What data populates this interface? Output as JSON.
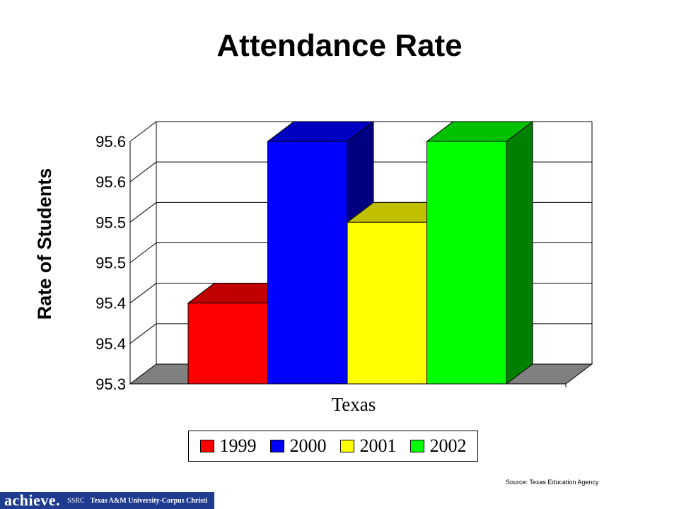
{
  "title": "Attendance Rate",
  "source": "Source: Texas Education Agency",
  "footer": {
    "logo": "achieve.",
    "ssrc": "SSRC",
    "university": "Texas A&M University-Corpus Christi"
  },
  "chart_data": {
    "type": "bar",
    "title": "Attendance Rate",
    "xlabel": "",
    "ylabel": "Rate of Students",
    "categories": [
      "Texas"
    ],
    "series": [
      {
        "name": "1999",
        "values": [
          95.4
        ],
        "color": "#ff0000",
        "top_color": "#c00000",
        "side_color": "#c00000"
      },
      {
        "name": "2000",
        "values": [
          95.6
        ],
        "color": "#0000ff",
        "top_color": "#0000c0",
        "side_color": "#000080"
      },
      {
        "name": "2001",
        "values": [
          95.5
        ],
        "color": "#ffff00",
        "top_color": "#c0c000",
        "side_color": "#c0c000"
      },
      {
        "name": "2002",
        "values": [
          95.6
        ],
        "color": "#00ff00",
        "top_color": "#00c000",
        "side_color": "#008000"
      }
    ],
    "ylim": [
      95.3,
      95.6
    ],
    "yticks": [
      95.3,
      95.35,
      95.4,
      95.45,
      95.5,
      95.55,
      95.6
    ],
    "ytick_labels": [
      "95.3",
      "95.4",
      "95.4",
      "95.5",
      "95.5",
      "95.6",
      "95.6"
    ],
    "grid": true,
    "legend_position": "bottom",
    "three_d": true
  }
}
